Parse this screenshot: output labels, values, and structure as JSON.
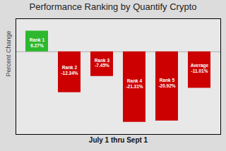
{
  "chart_data": {
    "type": "bar",
    "title": "Performance Ranking by Quantify Crypto",
    "xlabel": "July 1 thru Sept 1",
    "ylabel": "Percent Change",
    "categories": [
      "Rank 1",
      "Rank 2",
      "Rank 3",
      "Rank 4",
      "Rank 5",
      "Average"
    ],
    "values": [
      6.27,
      -12.34,
      -7.45,
      -21.31,
      -20.92,
      -11.01
    ],
    "value_labels": [
      "Rank 1\n6.27%",
      "Rank 2\n-12.34%",
      "Rank 3\n-7.45%",
      "Rank 4\n-21.31%",
      "Rank 5\n-20.92%",
      "Average\n-11.01%"
    ],
    "colors": [
      "#2db82d",
      "#cc0000",
      "#cc0000",
      "#cc0000",
      "#cc0000",
      "#cc0000"
    ],
    "ylim": [
      -25,
      10
    ],
    "grid": false,
    "data_labels": true,
    "tick_labels": false
  }
}
